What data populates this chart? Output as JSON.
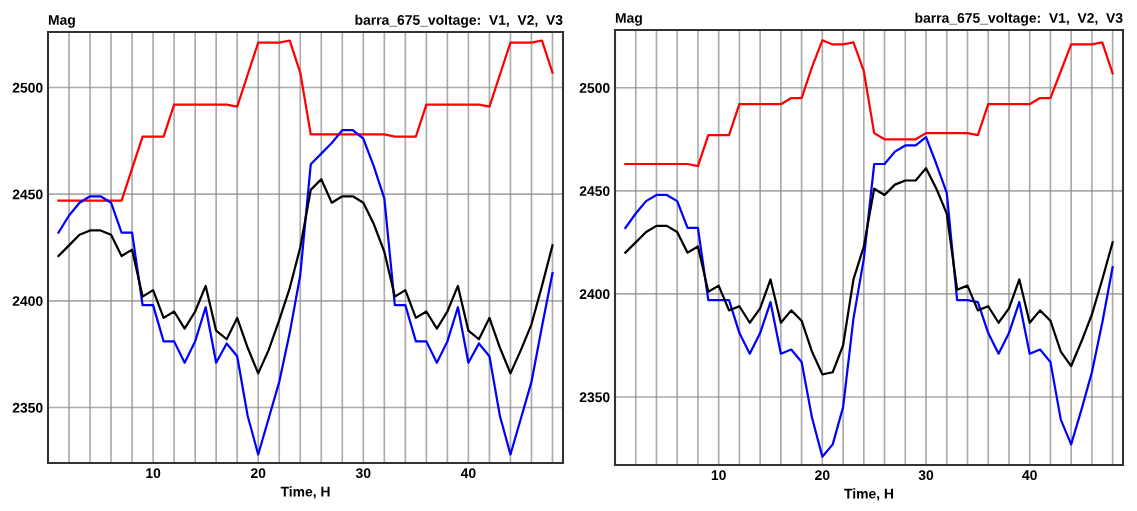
{
  "chart_data": [
    {
      "type": "line",
      "ylabel": "Mag",
      "xlabel": "Time, H",
      "annotations": [
        "barra_675_voltage:  V1,  V2,  V3"
      ],
      "x": [
        1,
        2,
        3,
        4,
        5,
        6,
        7,
        8,
        9,
        10,
        11,
        12,
        13,
        14,
        15,
        16,
        17,
        18,
        19,
        20,
        21,
        22,
        23,
        24,
        25,
        26,
        27,
        28,
        29,
        30,
        31,
        32,
        33,
        34,
        35,
        36,
        37,
        38,
        39,
        40,
        41,
        42,
        43,
        44,
        45,
        46,
        47,
        48
      ],
      "series": [
        {
          "color": "#ff0000",
          "values": [
            2447,
            2447,
            2447,
            2447,
            2447,
            2447,
            2447,
            2462,
            2477,
            2477,
            2477,
            2492,
            2492,
            2492,
            2492,
            2492,
            2492,
            2491,
            2506,
            2521,
            2521,
            2521,
            2522,
            2507,
            2478,
            2478,
            2478,
            2478,
            2478,
            2478,
            2478,
            2478,
            2477,
            2477,
            2477,
            2492,
            2492,
            2492,
            2492,
            2492,
            2492,
            2491,
            2506,
            2521,
            2521,
            2521,
            2522,
            2507
          ]
        },
        {
          "color": "#0000ff",
          "values": [
            2432,
            2440,
            2446,
            2449,
            2449,
            2446,
            2432,
            2432,
            2398,
            2398,
            2381,
            2381,
            2371,
            2381,
            2397,
            2371,
            2380,
            2374,
            2346,
            2328,
            2345,
            2362,
            2385,
            2412,
            2464,
            2469,
            2474,
            2480,
            2480,
            2476,
            2463,
            2448,
            2398,
            2398,
            2381,
            2381,
            2371,
            2381,
            2397,
            2371,
            2380,
            2374,
            2346,
            2328,
            2345,
            2362,
            2388,
            2413
          ]
        },
        {
          "color": "#000000",
          "values": [
            2421,
            2426,
            2431,
            2433,
            2433,
            2431,
            2421,
            2424,
            2402,
            2405,
            2392,
            2395,
            2387,
            2395,
            2407,
            2386,
            2382,
            2392,
            2378,
            2366,
            2377,
            2391,
            2406,
            2425,
            2452,
            2457,
            2446,
            2449,
            2449,
            2446,
            2436,
            2423,
            2402,
            2405,
            2392,
            2395,
            2387,
            2395,
            2407,
            2386,
            2382,
            2392,
            2378,
            2366,
            2377,
            2389,
            2407,
            2426
          ]
        }
      ],
      "xlim": [
        0,
        49
      ],
      "ylim": [
        2324,
        2526
      ],
      "xticks": [
        {
          "value": 2,
          "label": null
        },
        {
          "value": 4,
          "label": null
        },
        {
          "value": 6,
          "label": null
        },
        {
          "value": 8,
          "label": null
        },
        10,
        {
          "value": 12,
          "label": null
        },
        {
          "value": 14,
          "label": null
        },
        {
          "value": 16,
          "label": null
        },
        {
          "value": 18,
          "label": null
        },
        20,
        {
          "value": 22,
          "label": null
        },
        {
          "value": 24,
          "label": null
        },
        {
          "value": 26,
          "label": null
        },
        {
          "value": 28,
          "label": null
        },
        30,
        {
          "value": 32,
          "label": null
        },
        {
          "value": 34,
          "label": null
        },
        {
          "value": 36,
          "label": null
        },
        {
          "value": 38,
          "label": null
        },
        40,
        {
          "value": 42,
          "label": null
        },
        {
          "value": 44,
          "label": null
        },
        {
          "value": 46,
          "label": null
        },
        {
          "value": 48,
          "label": null
        }
      ],
      "yticks": [
        2350,
        2400,
        2450,
        2500
      ],
      "grid": true
    },
    {
      "type": "line",
      "ylabel": "Mag",
      "xlabel": "Time, H",
      "annotations": [
        "barra_675_voltage:  V1,  V2,  V3"
      ],
      "x": [
        1,
        2,
        3,
        4,
        5,
        6,
        7,
        8,
        9,
        10,
        11,
        12,
        13,
        14,
        15,
        16,
        17,
        18,
        19,
        20,
        21,
        22,
        23,
        24,
        25,
        26,
        27,
        28,
        29,
        30,
        31,
        32,
        33,
        34,
        35,
        36,
        37,
        38,
        39,
        40,
        41,
        42,
        43,
        44,
        45,
        46,
        47,
        48
      ],
      "series": [
        {
          "color": "#ff0000",
          "values": [
            2463,
            2463,
            2463,
            2463,
            2463,
            2463,
            2463,
            2462,
            2477,
            2477,
            2477,
            2492,
            2492,
            2492,
            2492,
            2492,
            2495,
            2495,
            2510,
            2523,
            2521,
            2521,
            2522,
            2508,
            2478,
            2475,
            2475,
            2475,
            2475,
            2478,
            2478,
            2478,
            2478,
            2478,
            2477,
            2492,
            2492,
            2492,
            2492,
            2492,
            2495,
            2495,
            2508,
            2521,
            2521,
            2521,
            2522,
            2507
          ]
        },
        {
          "color": "#0000ff",
          "values": [
            2432,
            2439,
            2445,
            2448,
            2448,
            2445,
            2432,
            2432,
            2397,
            2397,
            2397,
            2381,
            2371,
            2381,
            2396,
            2371,
            2373,
            2367,
            2340,
            2321,
            2327,
            2345,
            2388,
            2417,
            2463,
            2463,
            2469,
            2472,
            2472,
            2476,
            2463,
            2449,
            2397,
            2397,
            2396,
            2381,
            2371,
            2381,
            2396,
            2371,
            2373,
            2367,
            2339,
            2327,
            2344,
            2362,
            2386,
            2413
          ]
        },
        {
          "color": "#000000",
          "values": [
            2420,
            2425,
            2430,
            2433,
            2433,
            2430,
            2420,
            2423,
            2401,
            2404,
            2392,
            2394,
            2386,
            2393,
            2407,
            2386,
            2392,
            2387,
            2372,
            2361,
            2362,
            2375,
            2407,
            2423,
            2451,
            2448,
            2453,
            2455,
            2455,
            2461,
            2451,
            2439,
            2402,
            2404,
            2392,
            2394,
            2386,
            2393,
            2407,
            2386,
            2392,
            2387,
            2372,
            2365,
            2377,
            2390,
            2407,
            2425
          ]
        }
      ],
      "xlim": [
        0,
        49
      ],
      "ylim": [
        2317,
        2528
      ],
      "xticks": [
        {
          "value": 2,
          "label": null
        },
        {
          "value": 4,
          "label": null
        },
        {
          "value": 6,
          "label": null
        },
        {
          "value": 8,
          "label": null
        },
        10,
        {
          "value": 12,
          "label": null
        },
        {
          "value": 14,
          "label": null
        },
        {
          "value": 16,
          "label": null
        },
        {
          "value": 18,
          "label": null
        },
        20,
        {
          "value": 22,
          "label": null
        },
        {
          "value": 24,
          "label": null
        },
        {
          "value": 26,
          "label": null
        },
        {
          "value": 28,
          "label": null
        },
        30,
        {
          "value": 32,
          "label": null
        },
        {
          "value": 34,
          "label": null
        },
        {
          "value": 36,
          "label": null
        },
        {
          "value": 38,
          "label": null
        },
        40,
        {
          "value": 42,
          "label": null
        },
        {
          "value": 44,
          "label": null
        },
        {
          "value": 46,
          "label": null
        },
        {
          "value": 48,
          "label": null
        }
      ],
      "yticks": [
        2350,
        2400,
        2450,
        2500
      ],
      "grid": true
    }
  ]
}
